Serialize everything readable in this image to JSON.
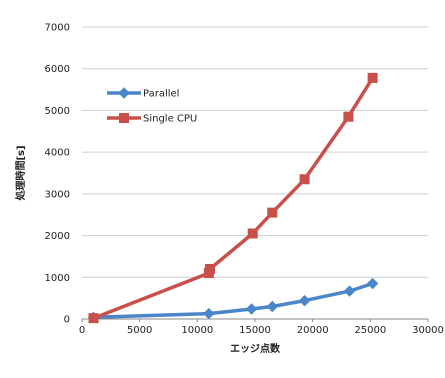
{
  "chart_data": {
    "type": "line",
    "xlabel": "エッジ点数",
    "ylabel": "処理時間[s]",
    "xlim": [
      0,
      30000
    ],
    "ylim": [
      0,
      7000
    ],
    "x_ticks": [
      0,
      5000,
      10000,
      15000,
      20000,
      25000,
      30000
    ],
    "y_ticks": [
      0,
      1000,
      2000,
      3000,
      4000,
      5000,
      6000,
      7000
    ],
    "grid": "horizontal",
    "legend_position": "left-inside",
    "series": [
      {
        "name": "Parallel",
        "color": "#4a86c8",
        "marker": "diamond",
        "points": [
          {
            "x": 1000,
            "y": 40
          },
          {
            "x": 11000,
            "y": 130
          },
          {
            "x": 14700,
            "y": 240
          },
          {
            "x": 16500,
            "y": 300
          },
          {
            "x": 19300,
            "y": 440
          },
          {
            "x": 23200,
            "y": 670
          },
          {
            "x": 25200,
            "y": 850
          }
        ]
      },
      {
        "name": "Single CPU",
        "color": "#c9504a",
        "marker": "square",
        "points": [
          {
            "x": 1000,
            "y": 20
          },
          {
            "x": 11000,
            "y": 1100
          },
          {
            "x": 11100,
            "y": 1200
          },
          {
            "x": 14800,
            "y": 2050
          },
          {
            "x": 16500,
            "y": 2550
          },
          {
            "x": 19300,
            "y": 3350
          },
          {
            "x": 23100,
            "y": 4850
          },
          {
            "x": 25200,
            "y": 5780
          }
        ]
      }
    ]
  }
}
